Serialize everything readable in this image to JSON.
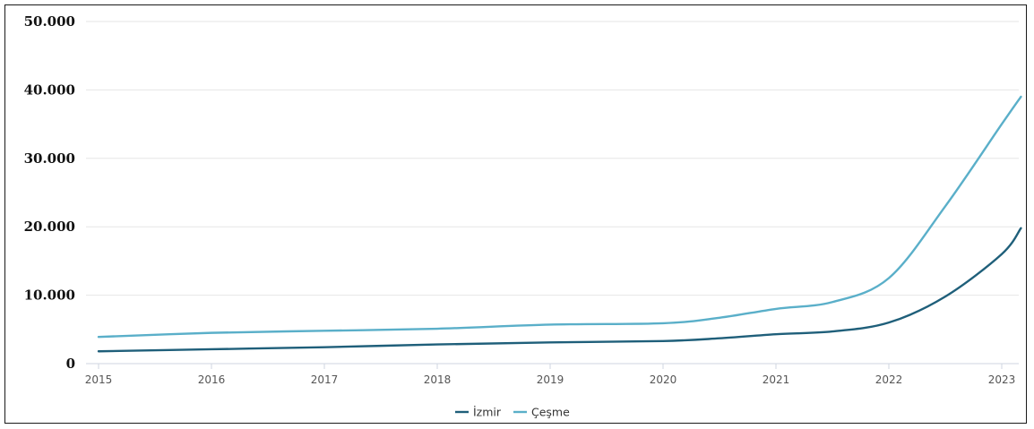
{
  "chart_data": {
    "type": "line",
    "title": "",
    "xlabel": "",
    "ylabel": "",
    "x": [
      2015,
      2016,
      2017,
      2018,
      2019,
      2020,
      2021,
      2022,
      2023
    ],
    "x_tick_labels": [
      "2015",
      "2016",
      "2017",
      "2018",
      "2019",
      "2020",
      "2021",
      "2022",
      "2023"
    ],
    "y_ticks": [
      0,
      10000,
      20000,
      30000,
      40000,
      50000
    ],
    "y_tick_labels": [
      "0",
      "10.000",
      "20.000",
      "30.000",
      "40.000",
      "50.000"
    ],
    "ylim": [
      0,
      50000
    ],
    "grid": true,
    "legend_position": "bottom-center",
    "series": [
      {
        "name": "İzmir",
        "color": "#1f5f7a",
        "points": [
          {
            "x": 2015,
            "y": 1800
          },
          {
            "x": 2016,
            "y": 2100
          },
          {
            "x": 2017,
            "y": 2400
          },
          {
            "x": 2018,
            "y": 2800
          },
          {
            "x": 2019,
            "y": 3100
          },
          {
            "x": 2020,
            "y": 3300
          },
          {
            "x": 2020.5,
            "y": 3700
          },
          {
            "x": 2021,
            "y": 4300
          },
          {
            "x": 2021.5,
            "y": 4700
          },
          {
            "x": 2022,
            "y": 6000
          },
          {
            "x": 2022.5,
            "y": 9800
          },
          {
            "x": 2023,
            "y": 16000
          },
          {
            "x": 2023.17,
            "y": 19800
          }
        ]
      },
      {
        "name": "Çeşme",
        "color": "#5aafc9",
        "points": [
          {
            "x": 2015,
            "y": 3900
          },
          {
            "x": 2016,
            "y": 4500
          },
          {
            "x": 2017,
            "y": 4800
          },
          {
            "x": 2018,
            "y": 5100
          },
          {
            "x": 2019,
            "y": 5700
          },
          {
            "x": 2020,
            "y": 5900
          },
          {
            "x": 2020.5,
            "y": 6700
          },
          {
            "x": 2021,
            "y": 8000
          },
          {
            "x": 2021.5,
            "y": 9000
          },
          {
            "x": 2022,
            "y": 12500
          },
          {
            "x": 2022.5,
            "y": 23000
          },
          {
            "x": 2023,
            "y": 35000
          },
          {
            "x": 2023.17,
            "y": 39000
          }
        ]
      }
    ]
  }
}
